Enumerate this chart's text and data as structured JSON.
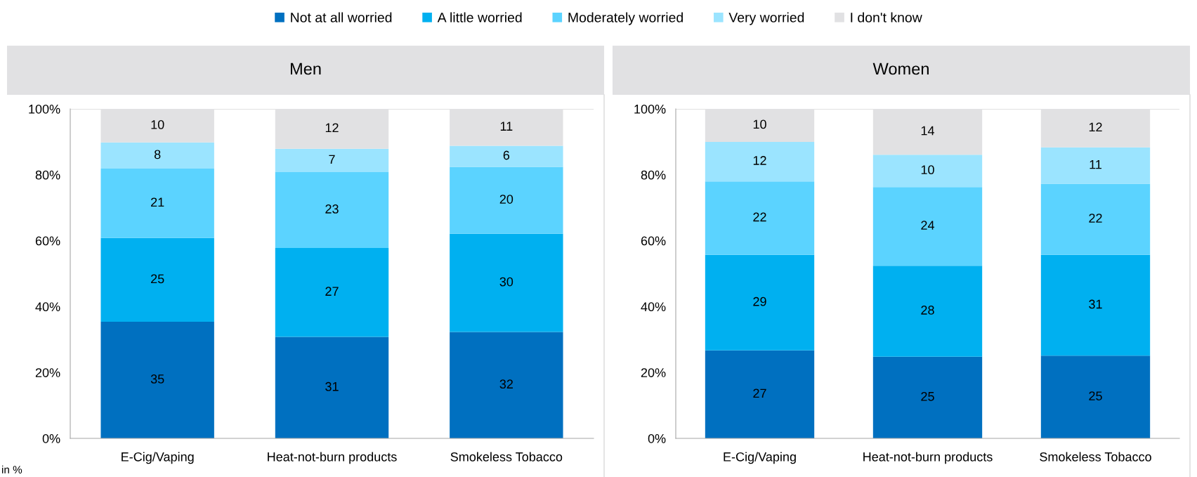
{
  "chart_data": [
    {
      "type": "bar",
      "title": "Men",
      "stacked": true,
      "categories": [
        "E-Cig/Vaping",
        "Heat-not-burn products",
        "Smokeless Tobacco"
      ],
      "series": [
        {
          "name": "Not at all worried",
          "color": "#0070c0",
          "values": [
            35.4,
            30.8,
            32.3
          ],
          "value_labels": [
            "35",
            "31",
            "32"
          ]
        },
        {
          "name": "A little worried",
          "color": "#00b0f0",
          "values": [
            25.4,
            27.0,
            29.8
          ],
          "value_labels": [
            "25",
            "27",
            "30"
          ]
        },
        {
          "name": "Moderately worried",
          "color": "#5bd3ff",
          "values": [
            21.1,
            23.0,
            20.3
          ],
          "value_labels": [
            "21",
            "23",
            "20"
          ]
        },
        {
          "name": "Very worried",
          "color": "#9be4ff",
          "values": [
            7.9,
            7.1,
            6.4
          ],
          "value_labels": [
            "8",
            "7",
            "6"
          ]
        },
        {
          "name": "I don't know",
          "color": "#e1e1e3",
          "values": [
            10.2,
            12.1,
            11.2
          ],
          "value_labels": [
            "10",
            "12",
            "11"
          ]
        }
      ],
      "ylim": [
        0,
        100
      ],
      "yticks": [
        {
          "value": 0,
          "label": "0%"
        },
        {
          "value": 20,
          "label": "20%"
        },
        {
          "value": 40,
          "label": "40%"
        },
        {
          "value": 60,
          "label": "60%"
        },
        {
          "value": 80,
          "label": "80%"
        },
        {
          "value": 100,
          "label": "100%"
        }
      ],
      "legend": "top",
      "annotations": [
        "in %"
      ]
    },
    {
      "type": "bar",
      "title": "Women",
      "stacked": true,
      "categories": [
        "E-Cig/Vaping",
        "Heat-not-burn products",
        "Smokeless Tobacco"
      ],
      "series": [
        {
          "color": "#0070c0",
          "values": [
            26.7,
            24.8,
            25.1
          ],
          "value_labels": [
            "27",
            "25",
            "25"
          ]
        },
        {
          "color": "#00b0f0",
          "values": [
            29.0,
            27.6,
            30.6
          ],
          "value_labels": [
            "29",
            "28",
            "31"
          ]
        },
        {
          "color": "#5bd3ff",
          "values": [
            22.3,
            23.9,
            21.6
          ],
          "value_labels": [
            "22",
            "24",
            "22"
          ]
        },
        {
          "color": "#9be4ff",
          "values": [
            12.0,
            9.8,
            11.0
          ],
          "value_labels": [
            "12",
            "10",
            "11"
          ]
        },
        {
          "color": "#e1e1e3",
          "values": [
            10.0,
            13.9,
            11.7
          ],
          "value_labels": [
            "10",
            "14",
            "12"
          ]
        }
      ],
      "ylim": [
        0,
        100
      ],
      "yticks": [
        {
          "value": 0,
          "label": "0%"
        },
        {
          "value": 20,
          "label": "20%"
        },
        {
          "value": 40,
          "label": "40%"
        },
        {
          "value": 60,
          "label": "60%"
        },
        {
          "value": 80,
          "label": "80%"
        },
        {
          "value": 100,
          "label": "100%"
        }
      ]
    }
  ]
}
